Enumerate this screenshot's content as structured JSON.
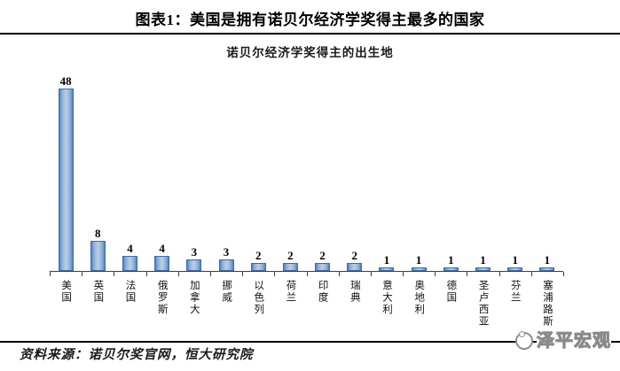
{
  "header": {
    "title": "图表1：美国是拥有诺贝尔经济学奖得主最多的国家"
  },
  "chart": {
    "title": "诺贝尔经济学奖得主的出生地"
  },
  "chart_data": {
    "type": "bar",
    "title": "诺贝尔经济学奖得主的出生地",
    "categories": [
      "美国",
      "英国",
      "法国",
      "俄罗斯",
      "加拿大",
      "挪威",
      "以色列",
      "荷兰",
      "印度",
      "瑞典",
      "意大利",
      "奥地利",
      "德国",
      "圣卢西亚",
      "芬兰",
      "塞浦路斯"
    ],
    "values": [
      48,
      8,
      4,
      4,
      3,
      3,
      2,
      2,
      2,
      2,
      1,
      1,
      1,
      1,
      1,
      1
    ],
    "xlabel": "",
    "ylabel": "",
    "ylim": [
      0,
      52
    ],
    "grid": false,
    "legend": "none",
    "data_labels": true,
    "bar_fill_center": "#b7cae4",
    "bar_fill_edge": "#4f81bd",
    "bar_border_color": "#3a6ca8",
    "axis_color": "#3f3f3f"
  },
  "footer": {
    "source": "资料来源：诺贝尔奖官网，恒大研究院",
    "logo_text": "泽平宏观"
  }
}
